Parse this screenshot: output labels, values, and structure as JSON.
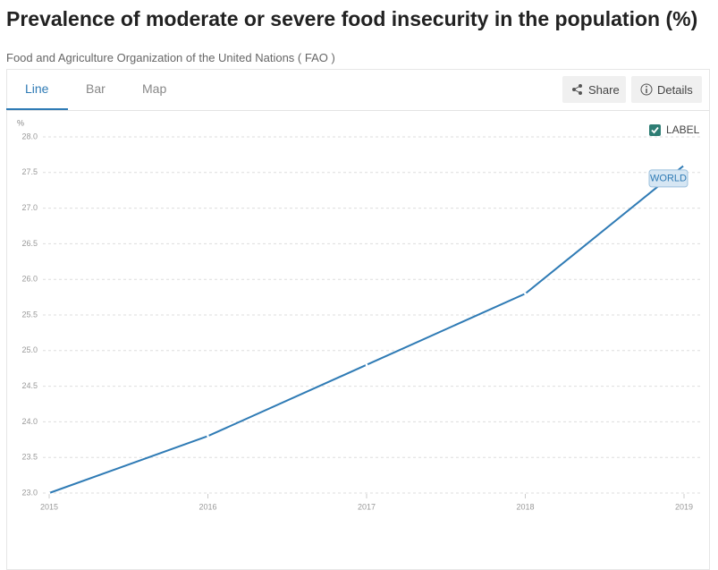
{
  "header": {
    "title": "Prevalence of moderate or severe food insecurity in the population (%)",
    "subtitle": "Food and Agriculture Organization of the United Nations ( FAO )"
  },
  "tabs": [
    "Line",
    "Bar",
    "Map"
  ],
  "buttons": [
    "Share",
    "Details"
  ],
  "label_toggle": "LABEL",
  "chart_data": {
    "type": "line",
    "y_axis_label": "%",
    "x": [
      2015,
      2016,
      2017,
      2018,
      2019
    ],
    "xlim": [
      2015,
      2019
    ],
    "xticks": [
      2015,
      2016,
      2017,
      2018,
      2019
    ],
    "ylim": [
      23,
      28
    ],
    "yticks": [
      {
        "value": 23,
        "label": "23.0"
      },
      23.5,
      {
        "value": 24,
        "label": "24.0"
      },
      24.5,
      {
        "value": 25,
        "label": "25.0"
      },
      25.5,
      {
        "value": 26,
        "label": "26.0"
      },
      26.5,
      {
        "value": 27,
        "label": "27.0"
      },
      27.5,
      {
        "value": 28,
        "label": "28.0"
      }
    ],
    "grid": true,
    "series": [
      {
        "name": "WORLD",
        "color": "#2f7bb5",
        "values": [
          23.0,
          23.8,
          24.8,
          25.8,
          27.6
        ]
      }
    ]
  }
}
